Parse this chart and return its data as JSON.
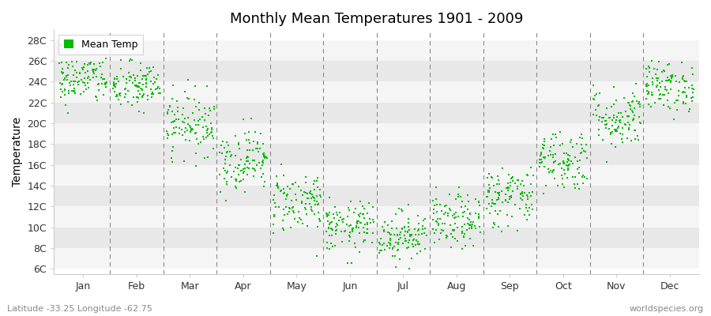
{
  "title": "Monthly Mean Temperatures 1901 - 2009",
  "ylabel": "Temperature",
  "footer_left": "Latitude -33.25 Longitude -62.75",
  "footer_right": "worldspecies.org",
  "legend_label": "Mean Temp",
  "marker_color": "#00BB00",
  "background_color": "#ffffff",
  "band_color_dark": "#e8e8e8",
  "band_color_light": "#f5f5f5",
  "ytick_labels": [
    "6C",
    "8C",
    "10C",
    "12C",
    "14C",
    "16C",
    "18C",
    "20C",
    "22C",
    "24C",
    "26C",
    "28C"
  ],
  "ytick_values": [
    6,
    8,
    10,
    12,
    14,
    16,
    18,
    20,
    22,
    24,
    26,
    28
  ],
  "ylim": [
    5.5,
    29.0
  ],
  "months": [
    "Jan",
    "Feb",
    "Mar",
    "Apr",
    "May",
    "Jun",
    "Jul",
    "Aug",
    "Sep",
    "Oct",
    "Nov",
    "Dec"
  ],
  "monthly_means": [
    24.2,
    23.5,
    20.0,
    16.5,
    12.5,
    10.0,
    9.2,
    10.5,
    13.0,
    16.5,
    20.5,
    23.5
  ],
  "monthly_stds": [
    1.2,
    1.2,
    1.5,
    1.5,
    1.5,
    1.2,
    1.2,
    1.3,
    1.5,
    1.5,
    1.5,
    1.2
  ],
  "n_years": 109,
  "random_seed": 42,
  "marker_size": 4,
  "figsize": [
    9.0,
    4.0
  ],
  "dpi": 100
}
